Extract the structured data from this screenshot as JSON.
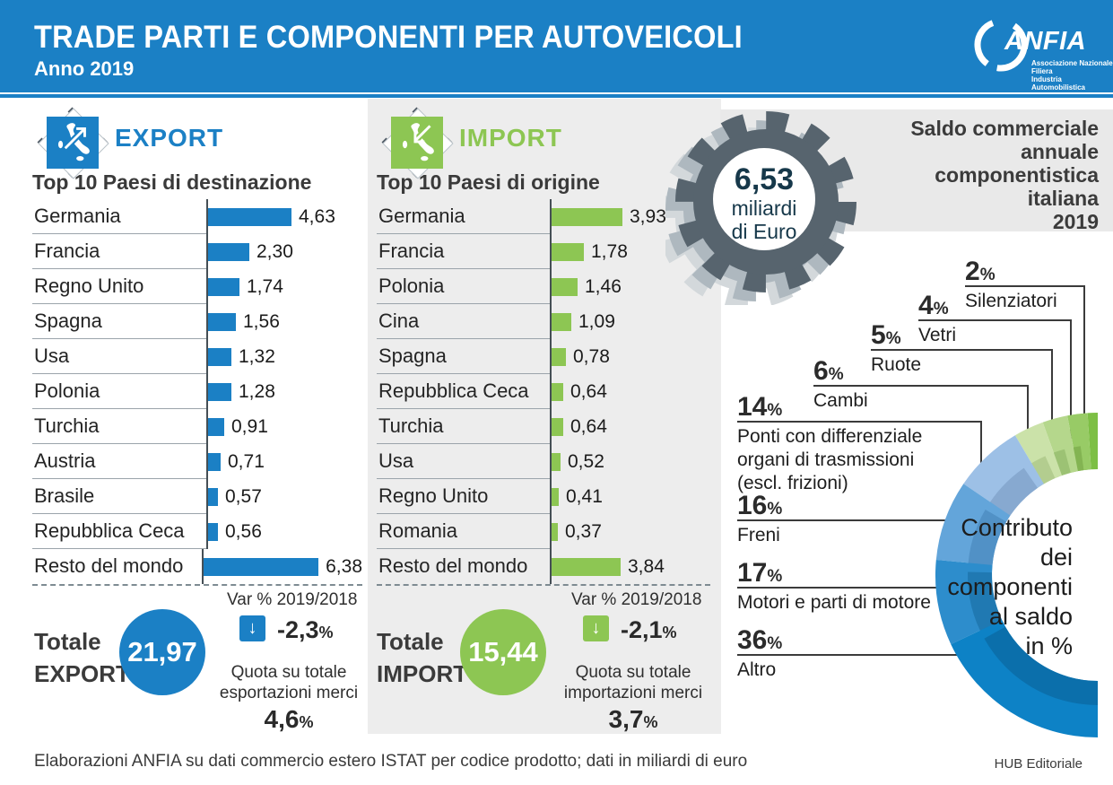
{
  "header": {
    "title": "TRADE PARTI E COMPONENTI PER AUTOVEICOLI",
    "subtitle": "Anno 2019",
    "accent_color": "#1b80c5",
    "brand": {
      "name": "ANFIA",
      "tagline": "Associazione Nazionale\nFiliera\nIndustria Automobilistica"
    }
  },
  "export_panel": {
    "title": "EXPORT",
    "color": "#1b80c5",
    "total_label": "Totale\nEXPORT",
    "total_value": "21,97",
    "var_title": "Var % 2019/2018",
    "var_value": "-2,3",
    "var_suffix": "%",
    "quota_label": "Quota su totale\nesportazioni merci",
    "quota_value": "4,6",
    "quota_suffix": "%"
  },
  "import_panel": {
    "title": "IMPORT",
    "color": "#8dc653",
    "total_label": "Totale\nIMPORT",
    "total_value": "15,44",
    "var_title": "Var % 2019/2018",
    "var_value": "-2,1",
    "var_suffix": "%",
    "quota_label": "Quota su totale\nimportazioni merci",
    "quota_value": "3,7",
    "quota_suffix": "%"
  },
  "saldo": {
    "box_title": "Saldo commerciale\nannuale\ncomponentistica\nitaliana\n2019",
    "gear_value": "6,53",
    "gear_unit": "miliardi\ndi Euro"
  },
  "icons": {
    "arrow_down": "↓"
  },
  "footer": {
    "source": "Elaborazioni ANFIA su dati commercio estero ISTAT per codice prodotto; dati in miliardi di euro",
    "publisher": "HUB Editoriale"
  },
  "chart_data": [
    {
      "type": "bar",
      "orientation": "horizontal",
      "title": "Top 10 Paesi di destinazione",
      "unit": "miliardi di euro",
      "color": "#1b80c5",
      "categories": [
        "Germania",
        "Francia",
        "Regno Unito",
        "Spagna",
        "Usa",
        "Polonia",
        "Turchia",
        "Austria",
        "Brasile",
        "Repubblica Ceca",
        "Resto del mondo"
      ],
      "values": [
        4.63,
        2.3,
        1.74,
        1.56,
        1.32,
        1.28,
        0.91,
        0.71,
        0.57,
        0.56,
        6.38
      ],
      "value_labels": [
        "4,63",
        "2,30",
        "1,74",
        "1,56",
        "1,32",
        "1,28",
        "0,91",
        "0,71",
        "0,57",
        "0,56",
        "6,38"
      ]
    },
    {
      "type": "bar",
      "orientation": "horizontal",
      "title": "Top 10 Paesi di origine",
      "unit": "miliardi di euro",
      "color": "#8dc653",
      "categories": [
        "Germania",
        "Francia",
        "Polonia",
        "Cina",
        "Spagna",
        "Repubblica Ceca",
        "Turchia",
        "Usa",
        "Regno Unito",
        "Romania",
        "Resto del mondo"
      ],
      "values": [
        3.93,
        1.78,
        1.46,
        1.09,
        0.78,
        0.64,
        0.64,
        0.52,
        0.41,
        0.37,
        3.84
      ],
      "value_labels": [
        "3,93",
        "1,78",
        "1,46",
        "1,09",
        "0,78",
        "0,64",
        "0,64",
        "0,52",
        "0,41",
        "0,37",
        "3,84"
      ]
    },
    {
      "type": "donut",
      "title": "Contributo dei componenti al saldo in %",
      "center_text": "Contributo\ndei\ncomponenti\nal saldo\nin %",
      "pct_suffix": "%",
      "segments": [
        {
          "label": "Silenziatori",
          "pct": 2,
          "color": "#7dbf45",
          "shade": "#68a637"
        },
        {
          "label": "Vetri",
          "pct": 4,
          "color": "#98cb66",
          "shade": "#83b452"
        },
        {
          "label": "Ruote",
          "pct": 5,
          "color": "#b5d78c",
          "shade": "#9cc274"
        },
        {
          "label": "Cambi",
          "pct": 6,
          "color": "#cbe2a9",
          "shade": "#b3cd8f"
        },
        {
          "label": "Ponti con differenziale\norgani di trasmissioni\n(escl. frizioni)",
          "pct": 14,
          "color": "#9dc0e6",
          "shade": "#87a9d0"
        },
        {
          "label": "Freni",
          "pct": 16,
          "color": "#63a5da",
          "shade": "#5191c6"
        },
        {
          "label": "Motori e parti di motore",
          "pct": 17,
          "color": "#2d8dcc",
          "shade": "#2079b2"
        },
        {
          "label": "Altro",
          "pct": 36,
          "color": "#0d82c6",
          "shade": "#0b6fab"
        }
      ]
    }
  ]
}
